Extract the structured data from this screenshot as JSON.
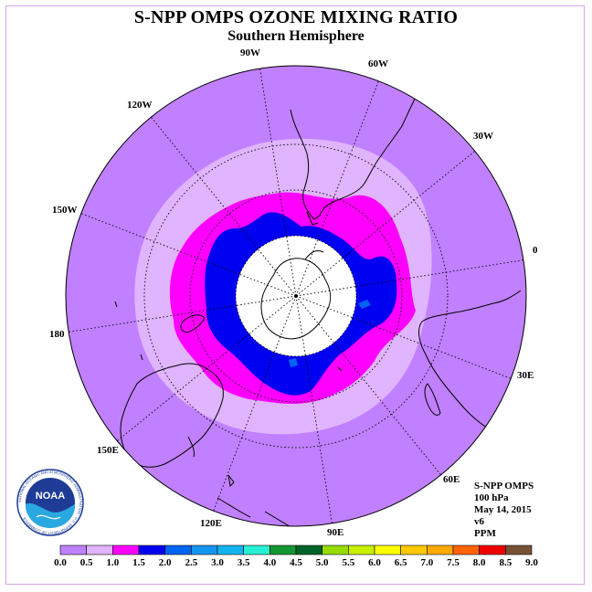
{
  "title": "S-NPP OMPS OZONE MIXING RATIO",
  "subtitle": "Southern Hemisphere",
  "longitude_labels": [
    "90W",
    "60W",
    "30W",
    "0",
    "30E",
    "60E",
    "90E",
    "120E",
    "150E",
    "180",
    "150W",
    "120W"
  ],
  "info": {
    "line1": "S-NPP OMPS",
    "line2": "100 hPa",
    "line3": "May 14, 2015",
    "line4": "v6",
    "line5": "PPM"
  },
  "logo": {
    "text": "NOAA",
    "ring_text": "NATIONAL OCEANIC AND ATMOSPHERIC ADMINISTRATION · U.S. DEPARTMENT OF COMMERCE"
  },
  "colorbar": {
    "labels": [
      "0.0",
      "0.5",
      "1.0",
      "1.5",
      "2.0",
      "2.5",
      "3.0",
      "3.5",
      "4.0",
      "4.5",
      "5.0",
      "5.5",
      "6.0",
      "6.5",
      "7.0",
      "7.5",
      "8.0",
      "8.5",
      "9.0"
    ],
    "colors": [
      "#c080ff",
      "#e0b4ff",
      "#ff00ff",
      "#0000f0",
      "#0064f0",
      "#1496f0",
      "#14b4f0",
      "#28f0d2",
      "#149632",
      "#006428",
      "#96dc00",
      "#c8f000",
      "#ffff00",
      "#ffc800",
      "#ffaa00",
      "#ff6400",
      "#f00000",
      "#785032"
    ]
  },
  "map_colors": {
    "level_0_05": "#c080ff",
    "level_05_10": "#e0b4ff",
    "level_10_15": "#ff00ff",
    "level_15_20": "#0000f0",
    "level_20_25": "#0064f0",
    "no_data": "#ffffff"
  }
}
